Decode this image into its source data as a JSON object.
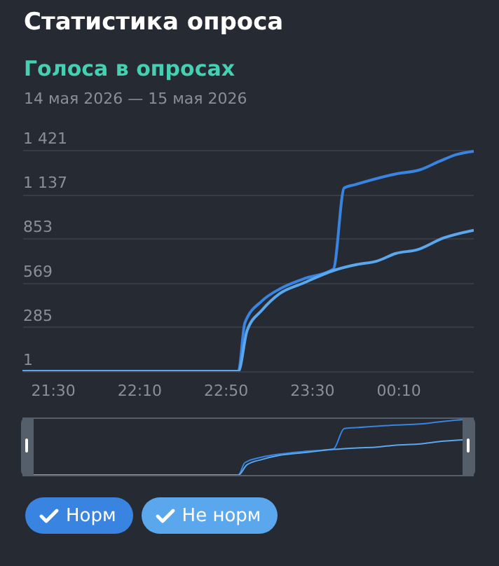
{
  "chart_data": {
    "type": "line",
    "title": "Статистика опроса",
    "subtitle": "Голоса в опросах",
    "annotations": [
      "14 мая 2026 — 15 мая 2026"
    ],
    "x": [
      "2026-05-14T21:16",
      "2026-05-14T22:56",
      "2026-05-14T22:59",
      "2026-05-14T23:07",
      "2026-05-14T23:15",
      "2026-05-14T23:26",
      "2026-05-14T23:40",
      "2026-05-14T23:45",
      "2026-05-14T23:50",
      "2026-05-15T00:09",
      "2026-05-15T00:20",
      "2026-05-15T00:29",
      "2026-05-15T00:37",
      "2026-05-15T00:45"
    ],
    "series": [
      {
        "name": "Норм",
        "color": "#3884e0",
        "values": [
          1,
          1,
          311,
          453,
          528,
          593,
          656,
          1177,
          1198,
          1267,
          1293,
          1347,
          1391,
          1412
        ]
      },
      {
        "name": "Не норм",
        "color": "#5ba7ee",
        "x": [
          "2026-05-14T21:16",
          "2026-05-14T22:56",
          "2026-05-14T23:00",
          "2026-05-14T23:07",
          "2026-05-14T23:15",
          "2026-05-14T23:26",
          "2026-05-14T23:40",
          "2026-05-14T23:51",
          "2026-05-15T00:00",
          "2026-05-15T00:09",
          "2026-05-15T00:19",
          "2026-05-15T00:31",
          "2026-05-15T00:45"
        ],
        "values": [
          1,
          1,
          260,
          394,
          498,
          566,
          647,
          686,
          707,
          757,
          781,
          856,
          906
        ]
      }
    ],
    "xlim": [
      "2026-05-14T21:16",
      "2026-05-15T00:45"
    ],
    "xticks": [
      {
        "value": "2026-05-14T21:30",
        "label": "21:30"
      },
      {
        "value": "2026-05-14T22:10",
        "label": "22:10"
      },
      {
        "value": "2026-05-14T22:50",
        "label": "22:50"
      },
      {
        "value": "2026-05-14T23:30",
        "label": "23:30"
      },
      {
        "value": "2026-05-15T00:10",
        "label": "00:10"
      }
    ],
    "ylim": [
      1,
      1421
    ],
    "yticks": [
      1,
      285,
      569,
      853,
      {
        "value": 1137,
        "label": "1 137"
      },
      {
        "value": 1421,
        "label": "1 421"
      }
    ],
    "grid": "y",
    "legend": "bottom"
  }
}
